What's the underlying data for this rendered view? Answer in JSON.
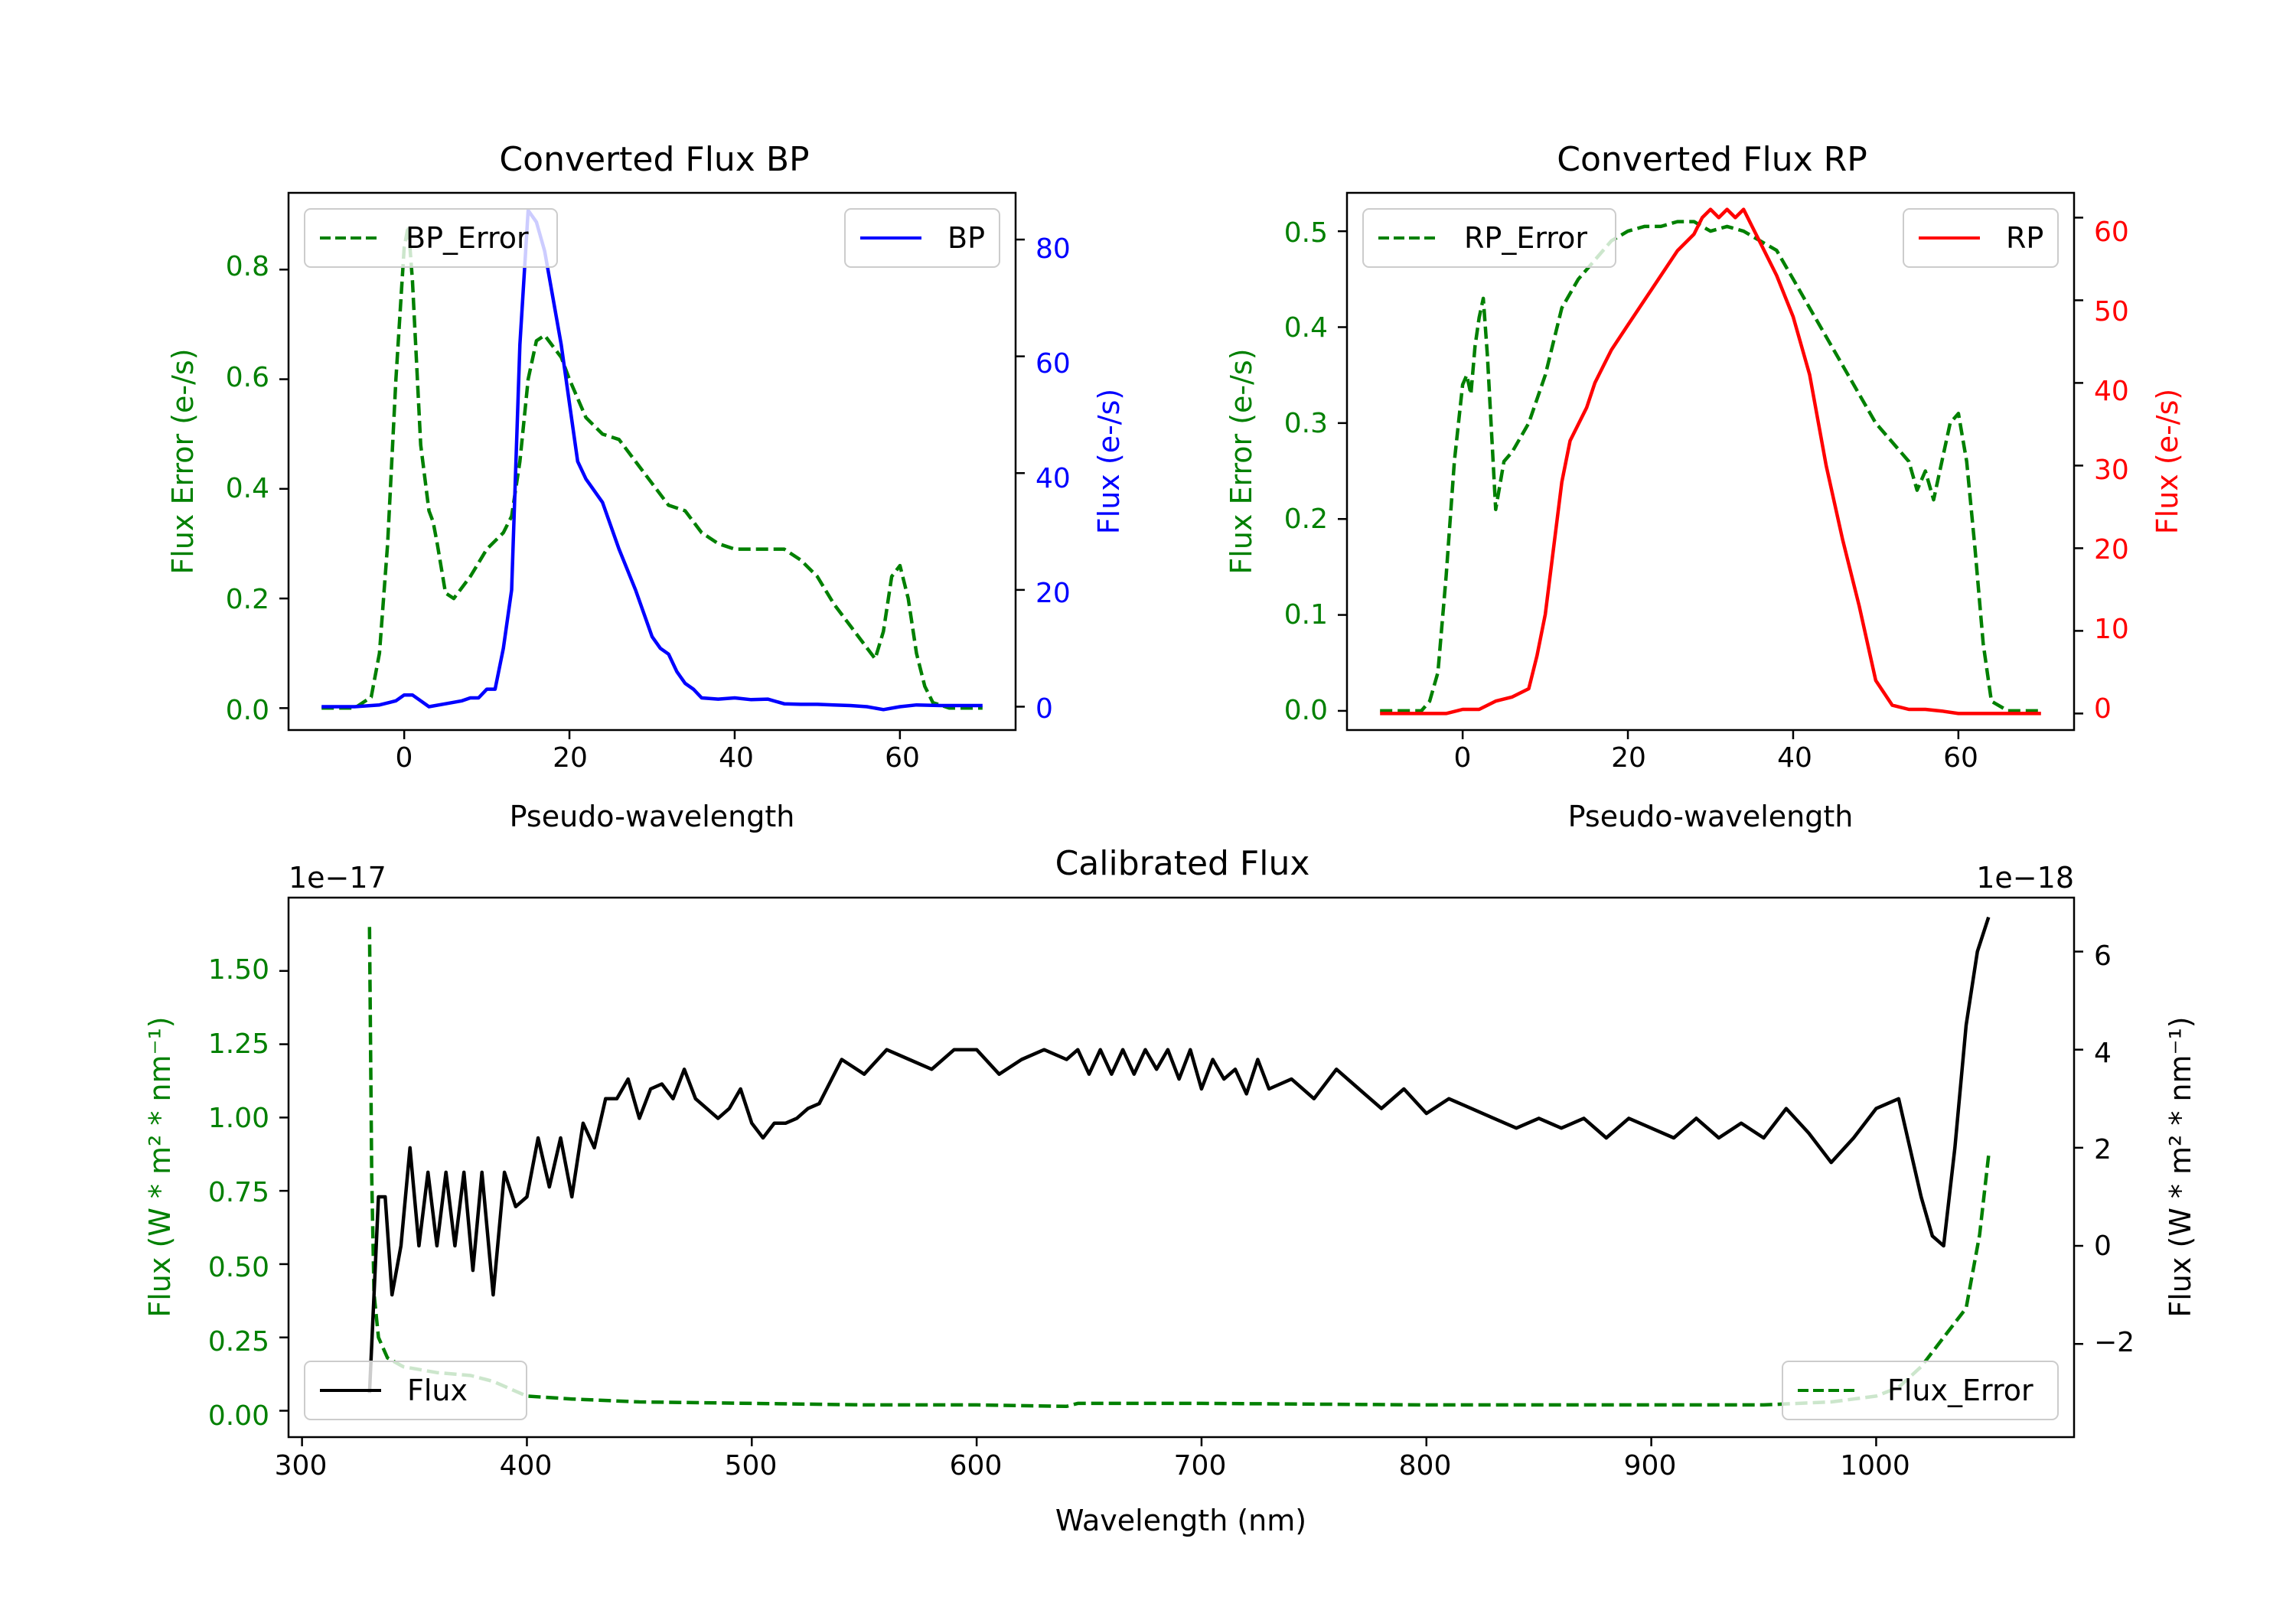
{
  "colors": {
    "green": "#008000",
    "blue": "#0000ff",
    "red": "#ff0000",
    "black": "#000000",
    "axis": "#000000"
  },
  "chart_data": [
    {
      "id": "bp",
      "type": "line",
      "title": "Converted Flux BP",
      "xlabel": "Pseudo-wavelength",
      "ylabel_left": "Flux Error (e-/s)",
      "ylabel_right": "Flux (e-/s)",
      "xlim": [
        -14,
        74
      ],
      "ylim_left": [
        -0.04,
        0.94
      ],
      "ylim_right": [
        -4,
        88
      ],
      "xticks": [
        0,
        20,
        40,
        60
      ],
      "yticks_left": [
        "0.0",
        "0.2",
        "0.4",
        "0.6",
        "0.8"
      ],
      "yticks_right": [
        "0",
        "20",
        "40",
        "60",
        "80"
      ],
      "legend_left": "BP_Error",
      "legend_right": "BP",
      "series": [
        {
          "name": "BP_Error",
          "axis": "left",
          "style": "dashed",
          "color": "green",
          "x": [
            -10,
            -6,
            -4,
            -3,
            -2,
            -1,
            0,
            0.5,
            1,
            2,
            3,
            3.5,
            4,
            5,
            6,
            8,
            10,
            12,
            13,
            14,
            15,
            16,
            17,
            18,
            19,
            20,
            22,
            24,
            26,
            28,
            30,
            32,
            34,
            36,
            38,
            40,
            42,
            44,
            46,
            48,
            50,
            52,
            54,
            56,
            57,
            58,
            59,
            60,
            61,
            62,
            63,
            64,
            66,
            70
          ],
          "y": [
            0.0,
            0.0,
            0.02,
            0.1,
            0.3,
            0.6,
            0.84,
            0.88,
            0.78,
            0.48,
            0.36,
            0.34,
            0.3,
            0.21,
            0.2,
            0.24,
            0.29,
            0.32,
            0.35,
            0.45,
            0.6,
            0.67,
            0.68,
            0.66,
            0.64,
            0.6,
            0.53,
            0.5,
            0.49,
            0.45,
            0.41,
            0.37,
            0.36,
            0.32,
            0.3,
            0.29,
            0.29,
            0.29,
            0.29,
            0.27,
            0.24,
            0.19,
            0.15,
            0.11,
            0.09,
            0.14,
            0.24,
            0.26,
            0.2,
            0.1,
            0.04,
            0.01,
            0.0,
            0.0
          ]
        },
        {
          "name": "BP",
          "axis": "right",
          "style": "solid",
          "color": "blue",
          "x": [
            -10,
            -6,
            -3,
            -1,
            0,
            1,
            2,
            3,
            5,
            7,
            8,
            9,
            10,
            11,
            12,
            13,
            14,
            15,
            16,
            17,
            18,
            19,
            20,
            21,
            22,
            24,
            26,
            28,
            30,
            31,
            32,
            33,
            34,
            35,
            36,
            38,
            40,
            42,
            44,
            46,
            48,
            50,
            52,
            54,
            56,
            58,
            60,
            62,
            65,
            70
          ],
          "y": [
            0,
            0,
            0.3,
            1,
            2,
            2,
            1,
            0,
            0.5,
            1,
            1.5,
            1.5,
            3,
            3,
            10,
            20,
            62,
            85,
            83,
            78,
            70,
            62,
            52,
            42,
            39,
            35,
            27,
            20,
            12,
            10,
            9,
            6,
            4,
            3,
            1.5,
            1.3,
            1.5,
            1.2,
            1.3,
            0.5,
            0.4,
            0.4,
            0.3,
            0.2,
            0,
            -0.5,
            0,
            0.3,
            0.2,
            0.2
          ]
        }
      ]
    },
    {
      "id": "rp",
      "type": "line",
      "title": "Converted Flux RP",
      "xlabel": "Pseudo-wavelength",
      "ylabel_left": "Flux Error (e-/s)",
      "ylabel_right": "Flux (e-/s)",
      "xlim": [
        -14,
        74
      ],
      "ylim_left": [
        -0.02,
        0.54
      ],
      "ylim_right": [
        -2,
        63
      ],
      "xticks": [
        0,
        20,
        40,
        60
      ],
      "yticks_left": [
        "0.0",
        "0.1",
        "0.2",
        "0.3",
        "0.4",
        "0.5"
      ],
      "yticks_right": [
        "0",
        "10",
        "20",
        "30",
        "40",
        "50",
        "60"
      ],
      "legend_left": "RP_Error",
      "legend_right": "RP",
      "series": [
        {
          "name": "RP_Error",
          "axis": "left",
          "style": "dashed",
          "color": "green",
          "x": [
            -10,
            -5,
            -4,
            -3,
            -2,
            -1,
            0,
            0.5,
            1,
            1.5,
            2,
            2.5,
            3,
            4,
            5,
            6,
            8,
            10,
            12,
            14,
            16,
            18,
            20,
            22,
            24,
            26,
            28,
            30,
            32,
            34,
            36,
            38,
            40,
            42,
            44,
            46,
            48,
            50,
            52,
            54,
            55,
            56,
            57,
            58,
            59,
            60,
            61,
            62,
            63,
            64,
            66,
            70
          ],
          "y": [
            0.0,
            0.0,
            0.01,
            0.04,
            0.14,
            0.26,
            0.34,
            0.35,
            0.33,
            0.38,
            0.41,
            0.43,
            0.37,
            0.21,
            0.26,
            0.27,
            0.3,
            0.35,
            0.42,
            0.45,
            0.47,
            0.49,
            0.5,
            0.505,
            0.505,
            0.51,
            0.51,
            0.5,
            0.505,
            0.5,
            0.49,
            0.48,
            0.45,
            0.42,
            0.39,
            0.36,
            0.33,
            0.3,
            0.28,
            0.26,
            0.23,
            0.25,
            0.22,
            0.26,
            0.3,
            0.31,
            0.26,
            0.17,
            0.07,
            0.01,
            0.0,
            0.0
          ]
        },
        {
          "name": "RP",
          "axis": "right",
          "style": "solid",
          "color": "red",
          "x": [
            -10,
            -5,
            -2,
            0,
            2,
            4,
            6,
            8,
            9,
            10,
            11,
            12,
            13,
            14,
            15,
            16,
            17,
            18,
            20,
            22,
            24,
            26,
            28,
            29,
            30,
            31,
            32,
            33,
            34,
            35,
            36,
            38,
            40,
            42,
            44,
            46,
            48,
            50,
            52,
            54,
            56,
            58,
            60,
            62,
            65,
            70
          ],
          "y": [
            0,
            0,
            0,
            0.5,
            0.5,
            1.5,
            2,
            3,
            7,
            12,
            20,
            28,
            33,
            35,
            37,
            40,
            42,
            44,
            47,
            50,
            53,
            56,
            58,
            60,
            61,
            60,
            61,
            60,
            61,
            59,
            57,
            53,
            48,
            41,
            30,
            21,
            13,
            4,
            1,
            0.5,
            0.5,
            0.3,
            0,
            0,
            0,
            0
          ]
        }
      ]
    },
    {
      "id": "cal",
      "type": "line",
      "title": "Calibrated Flux",
      "xlabel": "Wavelength (nm)",
      "ylabel_left": "Flux (W * m² * nm⁻¹)",
      "ylabel_right": "Flux (W * m² * nm⁻¹)",
      "offset_left": "1e−17",
      "offset_right": "1e−18",
      "xlim": [
        294,
        1088
      ],
      "ylim_left": [
        -0.09,
        1.75
      ],
      "ylim_right": [
        -3.9,
        7.1
      ],
      "xticks": [
        300,
        400,
        500,
        600,
        700,
        800,
        900,
        1000
      ],
      "yticks_left": [
        "0.00",
        "0.25",
        "0.50",
        "0.75",
        "1.00",
        "1.25",
        "1.50"
      ],
      "yticks_right": [
        "−2",
        "0",
        "2",
        "4",
        "6"
      ],
      "legend_left": "Flux",
      "legend_right": "Flux_Error",
      "series": [
        {
          "name": "Flux_Error",
          "axis": "left",
          "style": "dashed",
          "color": "green",
          "x": [
            330,
            331,
            332,
            334,
            338,
            345,
            360,
            375,
            385,
            400,
            420,
            450,
            500,
            550,
            600,
            640,
            645,
            700,
            800,
            900,
            950,
            980,
            1000,
            1010,
            1020,
            1030,
            1040,
            1046,
            1050
          ],
          "y": [
            1.65,
            0.8,
            0.4,
            0.25,
            0.18,
            0.15,
            0.13,
            0.12,
            0.1,
            0.05,
            0.04,
            0.03,
            0.025,
            0.02,
            0.02,
            0.015,
            0.025,
            0.025,
            0.02,
            0.02,
            0.02,
            0.03,
            0.05,
            0.08,
            0.15,
            0.25,
            0.35,
            0.6,
            0.87
          ]
        },
        {
          "name": "Flux",
          "axis": "right",
          "style": "solid",
          "color": "black",
          "x": [
            330,
            332,
            334,
            337,
            340,
            344,
            348,
            352,
            356,
            360,
            364,
            368,
            372,
            376,
            380,
            385,
            390,
            395,
            400,
            405,
            410,
            415,
            420,
            425,
            430,
            435,
            440,
            445,
            450,
            455,
            460,
            465,
            470,
            475,
            480,
            485,
            490,
            495,
            500,
            505,
            510,
            515,
            520,
            525,
            530,
            540,
            550,
            560,
            570,
            580,
            590,
            600,
            610,
            620,
            630,
            640,
            645,
            650,
            655,
            660,
            665,
            670,
            675,
            680,
            685,
            690,
            695,
            700,
            705,
            710,
            715,
            720,
            725,
            730,
            740,
            750,
            760,
            770,
            780,
            790,
            800,
            810,
            820,
            830,
            840,
            850,
            860,
            870,
            880,
            890,
            900,
            910,
            920,
            930,
            940,
            950,
            960,
            970,
            980,
            990,
            1000,
            1010,
            1020,
            1025,
            1030,
            1035,
            1040,
            1045,
            1050
          ],
          "y": [
            -3,
            -1,
            1,
            1,
            -1,
            0,
            2,
            0,
            1.5,
            0,
            1.5,
            0,
            1.5,
            -0.5,
            1.5,
            -1,
            1.5,
            0.8,
            1.0,
            2.2,
            1.2,
            2.2,
            1.0,
            2.5,
            2.0,
            3.0,
            3.0,
            3.4,
            2.6,
            3.2,
            3.3,
            3.0,
            3.6,
            3.0,
            2.8,
            2.6,
            2.8,
            3.2,
            2.5,
            2.2,
            2.5,
            2.5,
            2.6,
            2.8,
            2.9,
            3.8,
            3.5,
            4.0,
            3.8,
            3.6,
            4.0,
            4.0,
            3.5,
            3.8,
            4.0,
            3.8,
            4.0,
            3.5,
            4.0,
            3.5,
            4.0,
            3.5,
            4.0,
            3.6,
            4.0,
            3.4,
            4.0,
            3.2,
            3.8,
            3.4,
            3.6,
            3.1,
            3.8,
            3.2,
            3.4,
            3.0,
            3.6,
            3.2,
            2.8,
            3.2,
            2.7,
            3.0,
            2.8,
            2.6,
            2.4,
            2.6,
            2.4,
            2.6,
            2.2,
            2.6,
            2.4,
            2.2,
            2.6,
            2.2,
            2.5,
            2.2,
            2.8,
            2.3,
            1.7,
            2.2,
            2.8,
            3.0,
            1.0,
            0.2,
            0.0,
            2.0,
            4.5,
            6.0,
            6.7
          ]
        }
      ]
    }
  ]
}
